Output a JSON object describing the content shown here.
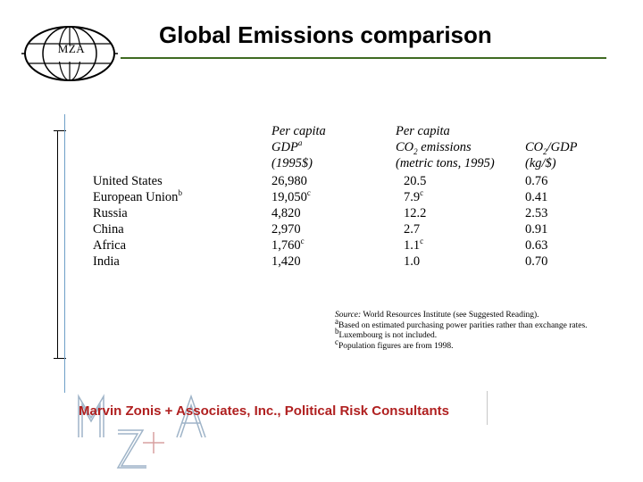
{
  "logo": {
    "text": "MZA"
  },
  "title": "Global Emissions comparison",
  "table": {
    "headers": {
      "gdp": [
        "Per capita",
        "GDP",
        "(1995$)"
      ],
      "gdp_sup": "a",
      "co2": [
        "Per capita",
        "CO",
        "emissions",
        "(metric tons, 1995)"
      ],
      "co2_sub": "2",
      "intensity": [
        "CO",
        "/GDP",
        "(kg/$)"
      ],
      "intensity_sub": "2"
    },
    "rows": [
      {
        "country": "United States",
        "country_sup": "",
        "gdp": "26,980",
        "gdp_sup": "",
        "co2": "20.5",
        "co2_sup": "",
        "intensity": "0.76"
      },
      {
        "country": "European Union",
        "country_sup": "b",
        "gdp": "19,050",
        "gdp_sup": "c",
        "co2": "7.9",
        "co2_sup": "c",
        "intensity": "0.41"
      },
      {
        "country": "Russia",
        "country_sup": "",
        "gdp": "4,820",
        "gdp_sup": "",
        "co2": "12.2",
        "co2_sup": "",
        "intensity": "2.53"
      },
      {
        "country": "China",
        "country_sup": "",
        "gdp": "2,970",
        "gdp_sup": "",
        "co2": "2.7",
        "co2_sup": "",
        "intensity": "0.91"
      },
      {
        "country": "Africa",
        "country_sup": "",
        "gdp": "1,760",
        "gdp_sup": "c",
        "co2": "1.1",
        "co2_sup": "c",
        "intensity": "0.63"
      },
      {
        "country": "India",
        "country_sup": "",
        "gdp": "1,420",
        "gdp_sup": "",
        "co2": "1.0",
        "co2_sup": "",
        "intensity": "0.70"
      }
    ]
  },
  "notes": {
    "source_label": "Source:",
    "source_text": " World Resources Institute (see Suggested Reading).",
    "items": [
      {
        "mark": "a",
        "text": "Based on estimated purchasing power parities rather than exchange rates."
      },
      {
        "mark": "b",
        "text": "Luxembourg is not included."
      },
      {
        "mark": "c",
        "text": "Population figures are from 1998."
      }
    ]
  },
  "footer": {
    "text": "Marvin Zonis + Associates, Inc., Political Risk Consultants"
  },
  "colors": {
    "title_rule": "#3f6b22",
    "footer_text": "#b02020",
    "watermark": "#9fb4c8"
  }
}
